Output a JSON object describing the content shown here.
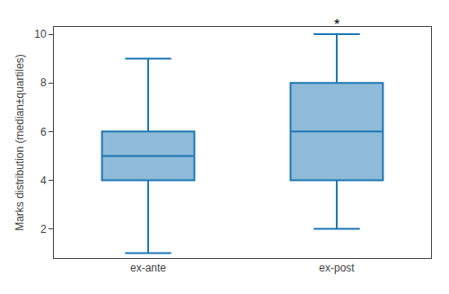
{
  "chart_data": {
    "type": "box",
    "ylabel": "Marks distribution (median±quartiles)",
    "categories": [
      "ex-ante",
      "ex-post"
    ],
    "q1": [
      4,
      4
    ],
    "median": [
      5,
      6
    ],
    "q3": [
      6,
      8
    ],
    "whisker_low": [
      1,
      2
    ],
    "whisker_high": [
      9,
      10
    ],
    "annotations": [
      {
        "category": "ex-post",
        "text": "*"
      }
    ],
    "ylim": [
      0.8,
      10.3
    ],
    "yticks": [
      2,
      4,
      6,
      8,
      10
    ],
    "grid": false
  }
}
